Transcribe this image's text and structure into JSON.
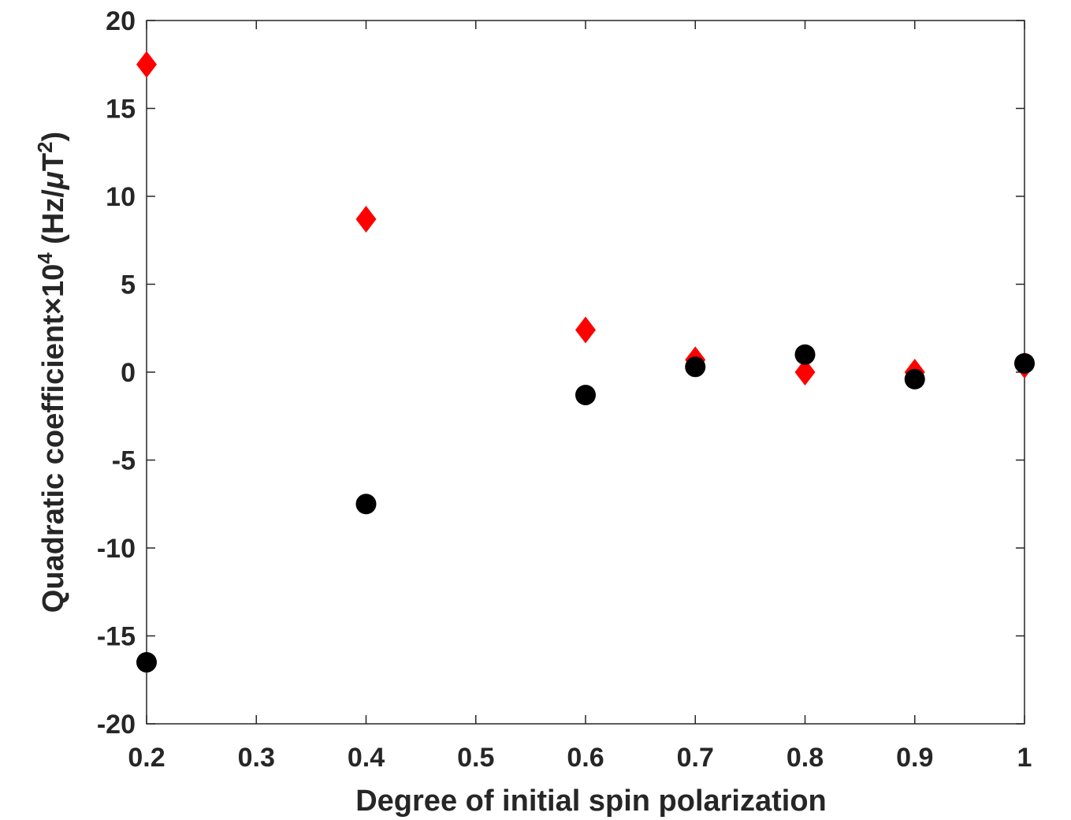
{
  "chart_data": {
    "type": "scatter",
    "xlabel": "Degree of initial spin polarization",
    "ylabel": {
      "prefix": "Quadratic coefficient×10",
      "prefix_exp": "4",
      "unit_open": " (Hz/",
      "mu": "μ",
      "unit_T": "T",
      "unit_exp": "2",
      "unit_close": ")"
    },
    "xlim": [
      0.2,
      1.0
    ],
    "ylim": [
      -20,
      20
    ],
    "x_ticks": [
      "0.2",
      "0.3",
      "0.4",
      "0.5",
      "0.6",
      "0.7",
      "0.8",
      "0.9",
      "1"
    ],
    "y_ticks": [
      "20",
      "15",
      "10",
      "5",
      "0",
      "-5",
      "-10",
      "-15",
      "-20"
    ],
    "grid": false,
    "series": [
      {
        "marker": "diamond",
        "color": "#ff0000",
        "x": [
          0.2,
          0.4,
          0.6,
          0.7,
          0.8,
          0.9,
          1.0
        ],
        "y": [
          17.5,
          8.7,
          2.4,
          0.7,
          0.0,
          0.0,
          0.4
        ]
      },
      {
        "marker": "circle",
        "color": "#000000",
        "x": [
          0.2,
          0.4,
          0.6,
          0.7,
          0.8,
          0.9,
          1.0
        ],
        "y": [
          -16.5,
          -7.5,
          -1.3,
          0.3,
          1.0,
          -0.4,
          0.5
        ]
      }
    ]
  }
}
